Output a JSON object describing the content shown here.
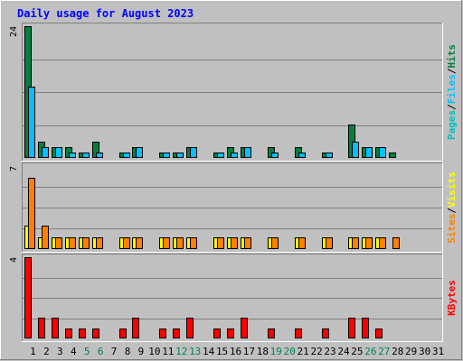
{
  "chart_data": {
    "type": "bar",
    "title": "Daily usage for August 2023",
    "categories": [
      "1",
      "2",
      "3",
      "4",
      "5",
      "6",
      "7",
      "8",
      "9",
      "10",
      "11",
      "12",
      "13",
      "14",
      "15",
      "16",
      "17",
      "18",
      "19",
      "20",
      "21",
      "22",
      "23",
      "24",
      "25",
      "26",
      "27",
      "28",
      "29",
      "30",
      "31"
    ],
    "weekend_days": [
      "5",
      "6",
      "12",
      "13",
      "19",
      "20",
      "26",
      "27"
    ],
    "panels": [
      {
        "max_label": "24",
        "ylim": [
          0,
          24
        ],
        "label_parts": [
          "Pages",
          "/",
          "Files",
          "/",
          "Hits"
        ],
        "series": [
          {
            "name": "Hits",
            "color": "#008040",
            "values": [
              24,
              3,
              2,
              2,
              1,
              3,
              0,
              1,
              2,
              0,
              1,
              1,
              2,
              0,
              1,
              2,
              2,
              0,
              2,
              0,
              2,
              0,
              1,
              0,
              6,
              2,
              2,
              1,
              0,
              0,
              0
            ]
          },
          {
            "name": "Files",
            "color": "#00c0ff",
            "values": [
              13,
              2,
              2,
              1,
              1,
              1,
              0,
              1,
              2,
              0,
              1,
              1,
              2,
              0,
              1,
              1,
              2,
              0,
              1,
              0,
              1,
              0,
              1,
              0,
              3,
              2,
              2,
              0,
              0,
              0,
              0
            ]
          },
          {
            "name": "Pages",
            "color": "#00c0c0",
            "values": [
              0,
              0,
              0,
              0,
              0,
              0,
              0,
              0,
              0,
              0,
              0,
              0,
              0,
              0,
              0,
              0,
              0,
              0,
              0,
              0,
              0,
              0,
              0,
              0,
              0,
              0,
              0,
              0,
              0,
              0,
              0
            ]
          }
        ]
      },
      {
        "max_label": "7",
        "ylim": [
          0,
          7
        ],
        "label_parts": [
          "Sites",
          "/",
          "Visits"
        ],
        "series": [
          {
            "name": "Visits",
            "color": "#ffff00",
            "values": [
              2,
              1,
              1,
              1,
              1,
              1,
              0,
              1,
              1,
              0,
              1,
              1,
              1,
              0,
              1,
              1,
              1,
              0,
              1,
              0,
              1,
              0,
              1,
              0,
              1,
              1,
              1,
              0,
              0,
              0,
              0
            ]
          },
          {
            "name": "Sites",
            "color": "#ff8000",
            "values": [
              6,
              2,
              1,
              1,
              1,
              1,
              0,
              1,
              1,
              0,
              1,
              1,
              1,
              0,
              1,
              1,
              1,
              0,
              1,
              0,
              1,
              0,
              1,
              0,
              1,
              1,
              1,
              1,
              0,
              0,
              0
            ]
          }
        ]
      },
      {
        "max_label": "4",
        "ylim": [
          0,
          4
        ],
        "label_parts": [
          "KBytes"
        ],
        "series": [
          {
            "name": "KBytes",
            "color": "#ff0000",
            "values": [
              4,
              1,
              1,
              0.5,
              0.5,
              0.5,
              0,
              0.5,
              1,
              0,
              0.5,
              0.5,
              1,
              0,
              0.5,
              0.5,
              1,
              0,
              0.5,
              0,
              0.5,
              0,
              0.5,
              0,
              1,
              1,
              0.5,
              0,
              0,
              0,
              0
            ]
          }
        ]
      }
    ],
    "colors": {
      "background": "#c0c0c0",
      "title": "#0000ff",
      "axis_text": "#000000",
      "weekend_text": "#00805c",
      "label_sep": "#000000"
    }
  }
}
